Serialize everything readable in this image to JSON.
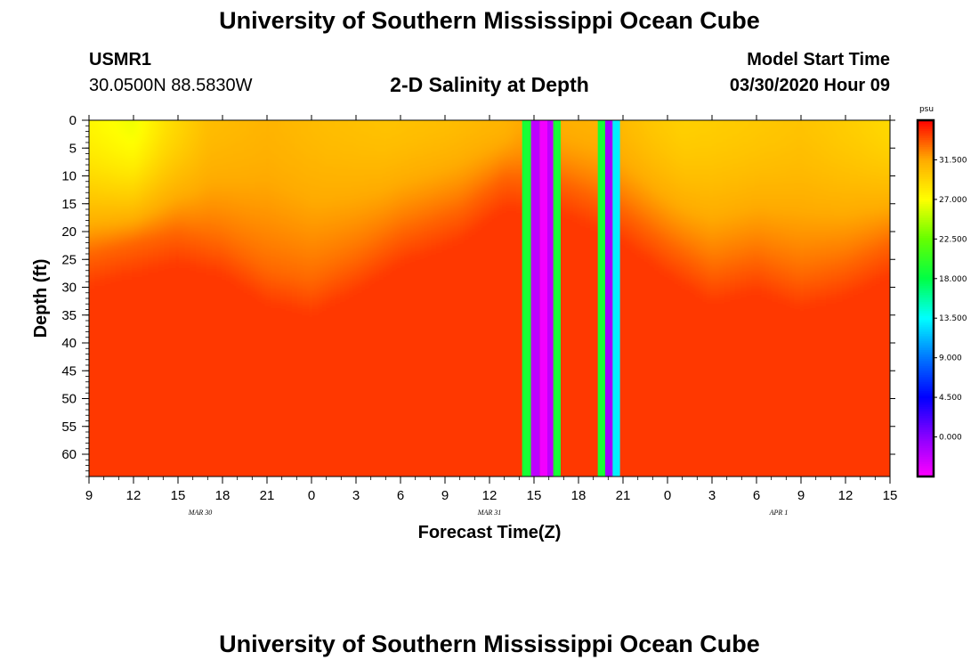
{
  "header": {
    "title": "University of Southern Mississippi Ocean Cube",
    "station_id": "USMR1",
    "station_coords": "30.0500N 88.5830W",
    "chart_title": "2-D Salinity at Depth",
    "model_start_label": "Model Start Time",
    "model_start_value": "03/30/2020 Hour 09"
  },
  "footer": {
    "title": "University of Southern Mississippi Ocean Cube"
  },
  "chart_data": {
    "type": "heatmap",
    "title": "2-D Salinity at Depth",
    "xlabel": "Forecast Time(Z)",
    "ylabel": "Depth (ft)",
    "x_hours_range": [
      0,
      54
    ],
    "ylim": [
      0,
      64
    ],
    "y_inverted": true,
    "x_tick_labels": [
      "9",
      "12",
      "15",
      "18",
      "21",
      "0",
      "3",
      "6",
      "9",
      "12",
      "15",
      "18",
      "21",
      "0",
      "3",
      "6",
      "9",
      "12",
      "15"
    ],
    "x_date_labels": [
      {
        "label": "MAR 30",
        "hour": 7.5
      },
      {
        "label": "MAR 31",
        "hour": 27
      },
      {
        "label": "APR 1",
        "hour": 46.5
      }
    ],
    "y_ticks": [
      0,
      5,
      10,
      15,
      20,
      25,
      30,
      35,
      40,
      45,
      50,
      55,
      60
    ],
    "colorbar": {
      "unit": "psu",
      "min": -4.5,
      "max": 36,
      "tick_values": [
        31.5,
        27.0,
        22.5,
        18.0,
        13.5,
        9.0,
        4.5,
        0.0
      ],
      "tick_labels": [
        "31.500",
        "27.000",
        "22.500",
        "18.000",
        "13.500",
        "9.000",
        "4.500",
        "0.000"
      ],
      "stops": [
        {
          "v": -4.5,
          "color": "#ff00ff"
        },
        {
          "v": 0.0,
          "color": "#8800ff"
        },
        {
          "v": 4.5,
          "color": "#0000ff"
        },
        {
          "v": 9.0,
          "color": "#0077ff"
        },
        {
          "v": 13.5,
          "color": "#00ffff"
        },
        {
          "v": 18.0,
          "color": "#00ff44"
        },
        {
          "v": 22.5,
          "color": "#66ff00"
        },
        {
          "v": 27.0,
          "color": "#ffff00"
        },
        {
          "v": 31.5,
          "color": "#ffaa00"
        },
        {
          "v": 36.0,
          "color": "#ff0000"
        }
      ]
    },
    "surface_salinity": [
      {
        "hour": 0,
        "value": 27.5
      },
      {
        "hour": 3,
        "value": 26.5
      },
      {
        "hour": 5,
        "value": 28.5
      },
      {
        "hour": 8,
        "value": 30.5
      },
      {
        "hour": 12,
        "value": 31.0
      },
      {
        "hour": 16,
        "value": 30.5
      },
      {
        "hour": 20,
        "value": 30.2
      },
      {
        "hour": 24,
        "value": 30.5
      },
      {
        "hour": 28,
        "value": 31.0
      },
      {
        "hour": 29,
        "value": 31.5
      },
      {
        "hour": 35,
        "value": 31.0
      },
      {
        "hour": 38,
        "value": 30.0
      },
      {
        "hour": 40,
        "value": 29.5
      },
      {
        "hour": 44,
        "value": 29.8
      },
      {
        "hour": 48,
        "value": 30.2
      },
      {
        "hour": 52,
        "value": 29.5
      },
      {
        "hour": 54,
        "value": 29.0
      }
    ],
    "mixed_layer_depth_ft": [
      {
        "hour": 0,
        "value": 24
      },
      {
        "hour": 3,
        "value": 22
      },
      {
        "hour": 6,
        "value": 20
      },
      {
        "hour": 9,
        "value": 22
      },
      {
        "hour": 12,
        "value": 27
      },
      {
        "hour": 15,
        "value": 29
      },
      {
        "hour": 18,
        "value": 25
      },
      {
        "hour": 21,
        "value": 20
      },
      {
        "hour": 25,
        "value": 16
      },
      {
        "hour": 27,
        "value": 12
      },
      {
        "hour": 28,
        "value": 10
      },
      {
        "hour": 32,
        "value": 11
      },
      {
        "hour": 36,
        "value": 16
      },
      {
        "hour": 39,
        "value": 22
      },
      {
        "hour": 42,
        "value": 27
      },
      {
        "hour": 45,
        "value": 25
      },
      {
        "hour": 48,
        "value": 28
      },
      {
        "hour": 51,
        "value": 26
      },
      {
        "hour": 54,
        "value": 22
      }
    ],
    "deep_salinity": 34.5,
    "anomaly_columns": [
      {
        "start": 29.2,
        "end": 29.8,
        "value": 19.0
      },
      {
        "start": 29.8,
        "end": 30.4,
        "value": -2.0
      },
      {
        "start": 30.4,
        "end": 30.9,
        "value": -4.0
      },
      {
        "start": 30.9,
        "end": 31.3,
        "value": -2.0
      },
      {
        "start": 31.3,
        "end": 31.8,
        "value": 19.0
      },
      {
        "start": 34.3,
        "end": 34.8,
        "value": 19.0
      },
      {
        "start": 34.8,
        "end": 35.3,
        "value": -1.0
      },
      {
        "start": 35.3,
        "end": 35.8,
        "value": 13.0
      }
    ]
  }
}
